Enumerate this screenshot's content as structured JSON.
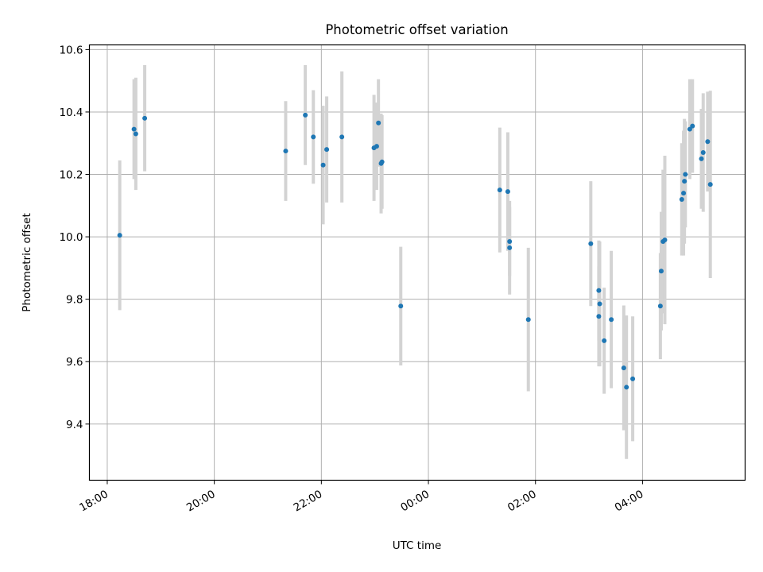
{
  "chart_data": {
    "type": "scatter",
    "title": "Photometric offset variation",
    "xlabel": "UTC time",
    "ylabel": "Photometric offset",
    "grid": true,
    "legend": "none",
    "x_ticks": [
      "18:00",
      "20:00",
      "22:00",
      "00:00",
      "02:00",
      "04:00"
    ],
    "y_ticks": [
      "9.4",
      "9.6",
      "9.8",
      "10.0",
      "10.2",
      "10.4",
      "10.6"
    ],
    "xlim": [
      "17:40",
      "05:55"
    ],
    "ylim": [
      9.22,
      10.615
    ],
    "colors": {
      "point": "#1f77b4",
      "errorbar": "#d3d3d3",
      "grid": "#b0b0b0"
    },
    "series": [
      {
        "x": [
          "18:14",
          "18:30",
          "18:32",
          "18:42",
          "21:20",
          "21:42",
          "21:51",
          "22:02",
          "22:06",
          "22:23",
          "22:59",
          "23:02",
          "23:04",
          "23:07",
          "23:08",
          "23:29",
          "01:20",
          "01:29",
          "01:31",
          "01:31",
          "01:52",
          "03:02",
          "03:11",
          "03:11",
          "03:12",
          "03:17",
          "03:25",
          "03:39",
          "03:42",
          "03:49",
          "04:20",
          "04:21",
          "04:23",
          "04:25",
          "04:44",
          "04:46",
          "04:47",
          "04:48",
          "04:53",
          "04:56",
          "05:06",
          "05:08",
          "05:13",
          "05:16"
        ],
        "y": [
          10.005,
          10.345,
          10.33,
          10.38,
          10.275,
          10.39,
          10.32,
          10.23,
          10.28,
          10.32,
          10.285,
          10.29,
          10.365,
          10.235,
          10.24,
          9.778,
          10.15,
          10.145,
          9.985,
          9.965,
          9.735,
          9.978,
          9.828,
          9.745,
          9.785,
          9.667,
          9.735,
          9.58,
          9.518,
          9.545,
          9.778,
          9.89,
          9.985,
          9.99,
          10.12,
          10.14,
          10.178,
          10.2,
          10.345,
          10.355,
          10.25,
          10.27,
          10.305,
          10.168
        ],
        "yerr": [
          0.24,
          0.16,
          0.18,
          0.17,
          0.16,
          0.16,
          0.15,
          0.19,
          0.17,
          0.21,
          0.17,
          0.14,
          0.14,
          0.16,
          0.15,
          0.19,
          0.2,
          0.19,
          0.11,
          0.15,
          0.23,
          0.2,
          0.16,
          0.16,
          0.2,
          0.17,
          0.22,
          0.2,
          0.23,
          0.2,
          0.17,
          0.19,
          0.23,
          0.27,
          0.18,
          0.2,
          0.2,
          0.17,
          0.16,
          0.15,
          0.16,
          0.19,
          0.16,
          0.3
        ]
      }
    ]
  }
}
